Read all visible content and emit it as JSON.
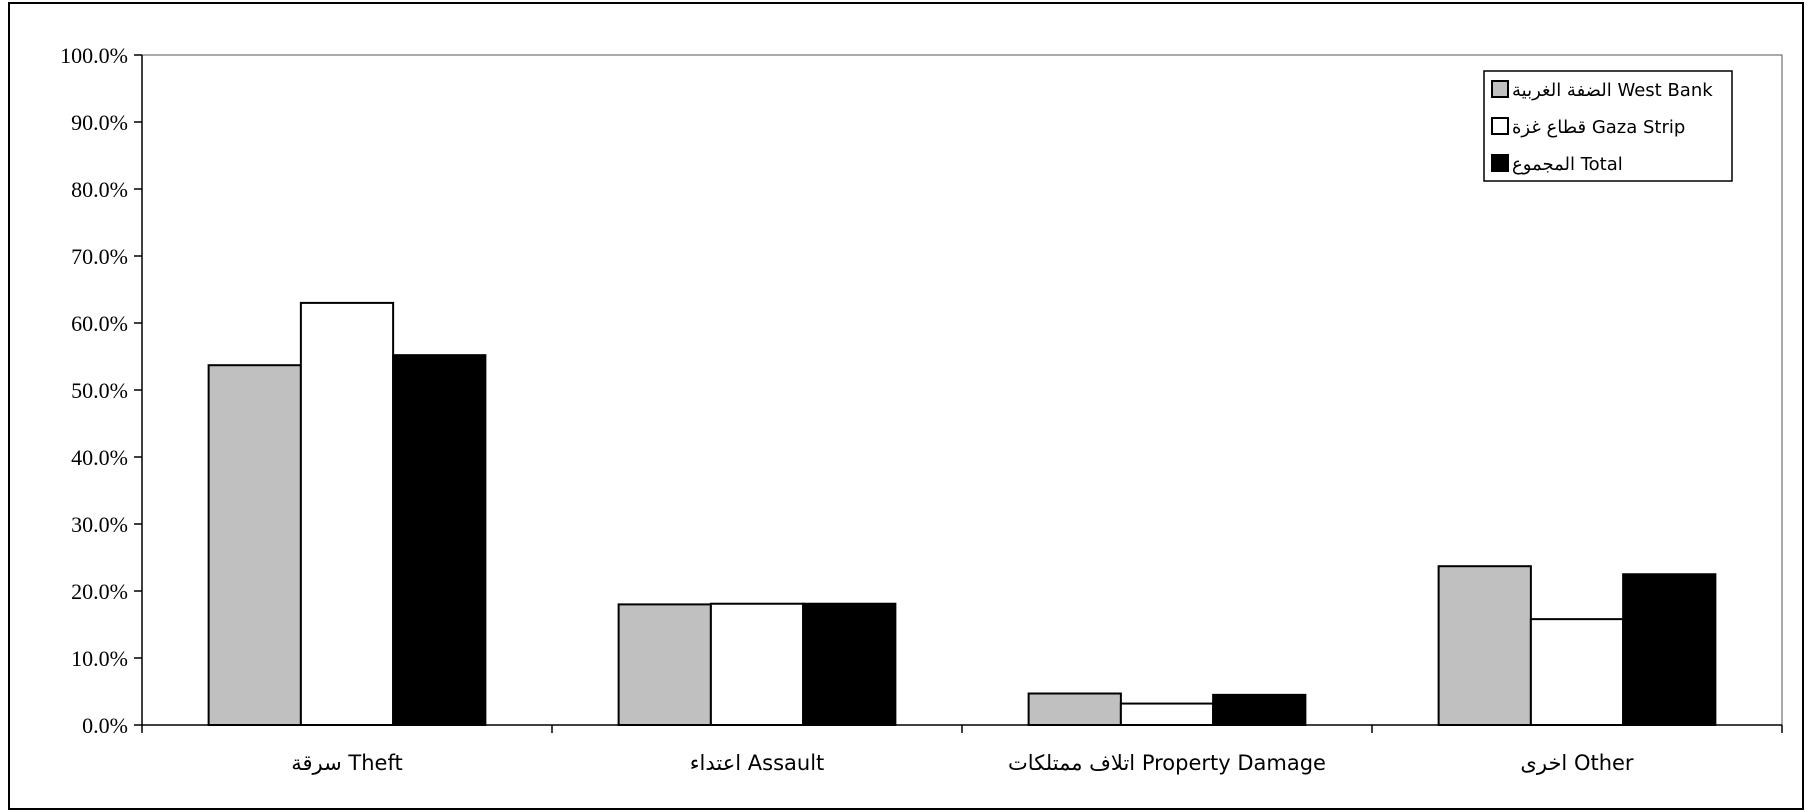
{
  "chart_data": {
    "type": "bar",
    "categories": [
      "سرقة Theft",
      "اعتداء Assault",
      "اتلاف ممتلكات Property Damage",
      "اخرى Other"
    ],
    "series": [
      {
        "name": "الضفة الغربية West Bank",
        "color": "#c0c0c0",
        "values": [
          53.7,
          18.0,
          4.7,
          23.7
        ]
      },
      {
        "name": "قطاع غزة Gaza Strip",
        "color": "#ffffff",
        "values": [
          63.0,
          18.1,
          3.2,
          15.8
        ]
      },
      {
        "name": "المجموع Total",
        "color": "#000000",
        "values": [
          55.2,
          18.1,
          4.5,
          22.5
        ]
      }
    ],
    "yticks": [
      "0.0%",
      "10.0%",
      "20.0%",
      "30.0%",
      "40.0%",
      "50.0%",
      "60.0%",
      "70.0%",
      "80.0%",
      "90.0%",
      "100.0%"
    ],
    "ylim": [
      0,
      100
    ],
    "grid": false,
    "legend_position": "top-right"
  }
}
